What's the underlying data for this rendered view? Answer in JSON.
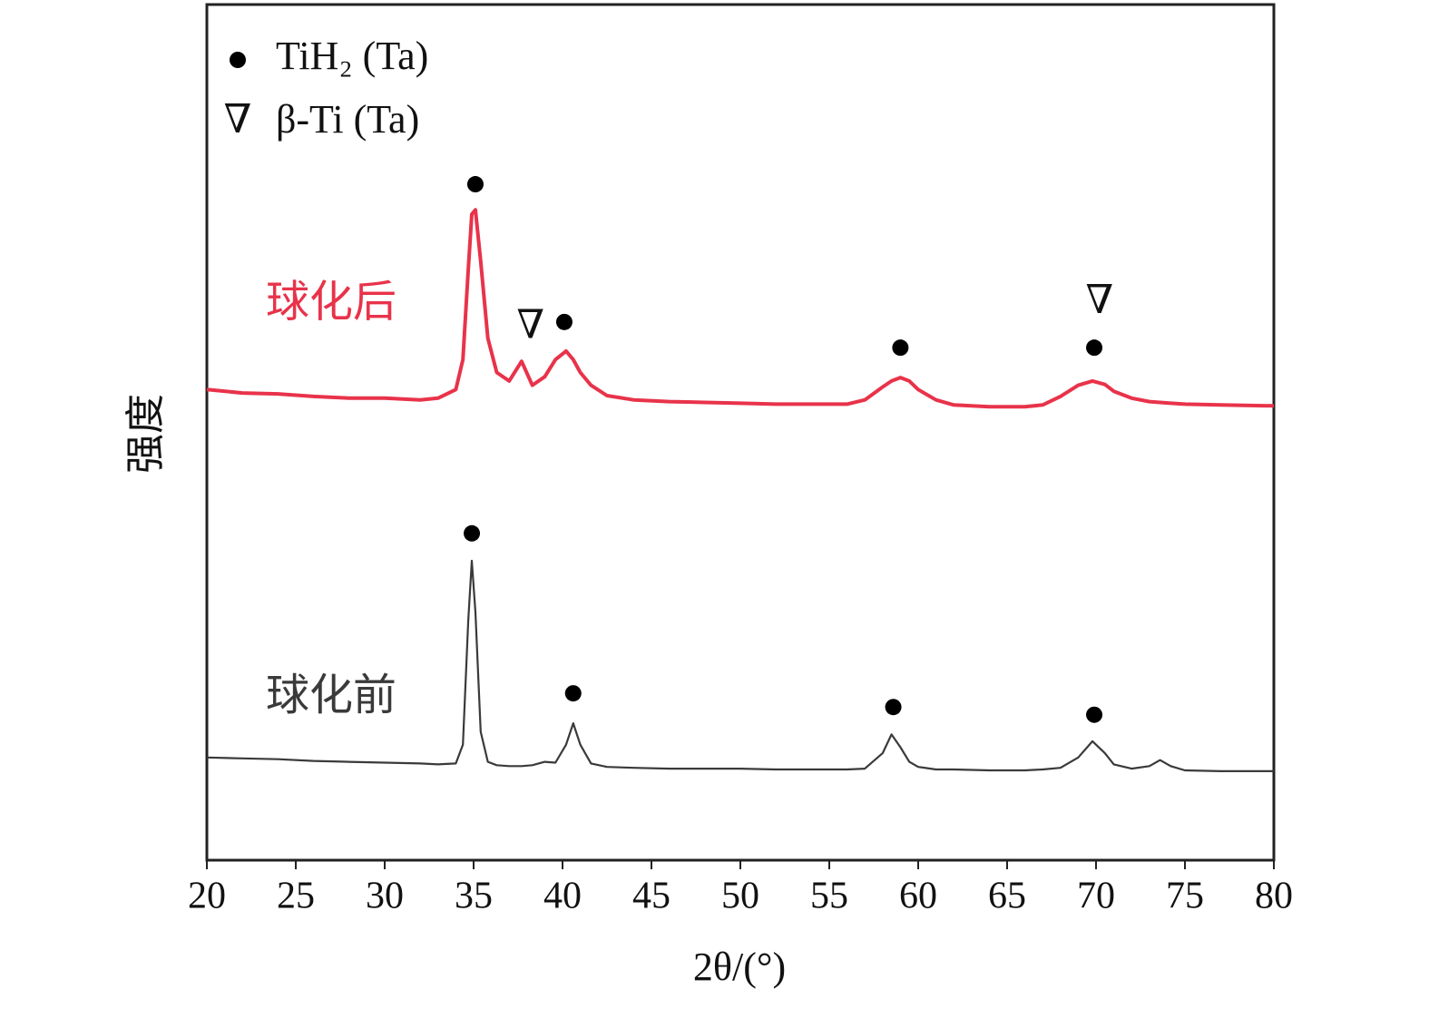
{
  "chart_data": {
    "type": "line",
    "x_label": "2θ/(°)",
    "y_label": "强度",
    "xlim": [
      20,
      80
    ],
    "xticks": [
      20,
      25,
      30,
      35,
      40,
      45,
      50,
      55,
      60,
      65,
      70,
      75,
      80
    ],
    "ylim": [
      0,
      100
    ],
    "legend": [
      {
        "symbol": "●",
        "label": "TiH₂ (Ta)"
      },
      {
        "symbol": "∇",
        "label": "β-Ti (Ta)"
      }
    ],
    "series": [
      {
        "name": "球化后",
        "color": "#e8334a",
        "x": [
          20,
          22,
          24,
          26,
          28,
          30,
          32,
          33,
          34,
          34.4,
          34.7,
          34.9,
          35.1,
          35.4,
          35.8,
          36.3,
          37,
          37.7,
          38.3,
          39,
          39.6,
          40.2,
          40.6,
          41,
          41.6,
          42.5,
          44,
          46,
          48,
          50,
          52,
          54,
          56,
          57,
          58,
          58.5,
          59,
          59.5,
          60,
          61,
          62,
          64,
          66,
          67,
          68,
          69,
          69.8,
          70.5,
          71,
          72,
          73,
          73.6,
          74.2,
          75,
          77,
          80
        ],
        "values": [
          55.0,
          54.6,
          54.5,
          54.2,
          54.0,
          54.0,
          53.8,
          54.0,
          55.0,
          58.5,
          69.0,
          75.5,
          76.0,
          70.0,
          61.0,
          57.0,
          56.0,
          58.3,
          55.5,
          56.5,
          58.5,
          59.5,
          58.5,
          57.0,
          55.5,
          54.3,
          53.8,
          53.6,
          53.5,
          53.4,
          53.3,
          53.3,
          53.3,
          53.8,
          55.3,
          56.0,
          56.4,
          56.0,
          55.0,
          53.8,
          53.2,
          53.0,
          53.0,
          53.2,
          54.2,
          55.5,
          56.0,
          55.6,
          54.8,
          54.0,
          53.6,
          53.5,
          53.4,
          53.3,
          53.2,
          53.1
        ],
        "markers": [
          {
            "x": 35.1,
            "y": 79.0,
            "symbol": "●"
          },
          {
            "x": 38.2,
            "y": 62.1,
            "symbol": "∇"
          },
          {
            "x": 40.1,
            "y": 62.9,
            "symbol": "●"
          },
          {
            "x": 59.0,
            "y": 59.9,
            "symbol": "●"
          },
          {
            "x": 70.2,
            "y": 65.0,
            "symbol": "∇"
          },
          {
            "x": 69.9,
            "y": 59.9,
            "symbol": "●"
          }
        ]
      },
      {
        "name": "球化前",
        "color": "#3a3a3a",
        "x": [
          20,
          22,
          24,
          26,
          28,
          30,
          32,
          33,
          34,
          34.4,
          34.7,
          34.9,
          35.1,
          35.4,
          35.8,
          36.3,
          37,
          37.7,
          38.3,
          39,
          39.6,
          40.2,
          40.6,
          41,
          41.6,
          42.5,
          44,
          46,
          48,
          50,
          52,
          54,
          56,
          57,
          58,
          58.5,
          59,
          59.5,
          60,
          61,
          62,
          64,
          66,
          67,
          68,
          69,
          69.8,
          70.5,
          71,
          72,
          73,
          73.6,
          74.2,
          75,
          77,
          80
        ],
        "values": [
          12.0,
          11.9,
          11.8,
          11.6,
          11.5,
          11.4,
          11.3,
          11.2,
          11.3,
          13.5,
          28.0,
          35.0,
          29.0,
          15.0,
          11.5,
          11.1,
          11.0,
          11.0,
          11.1,
          11.5,
          11.4,
          13.5,
          16.0,
          13.5,
          11.3,
          10.9,
          10.8,
          10.7,
          10.7,
          10.7,
          10.6,
          10.6,
          10.6,
          10.7,
          12.5,
          14.7,
          13.2,
          11.5,
          10.9,
          10.6,
          10.6,
          10.5,
          10.5,
          10.6,
          10.8,
          12.0,
          13.9,
          12.5,
          11.2,
          10.7,
          11.0,
          11.7,
          11.0,
          10.5,
          10.4,
          10.4
        ],
        "markers": [
          {
            "x": 34.9,
            "y": 38.2,
            "symbol": "●"
          },
          {
            "x": 40.6,
            "y": 19.5,
            "symbol": "●"
          },
          {
            "x": 58.6,
            "y": 17.9,
            "symbol": "●"
          },
          {
            "x": 69.9,
            "y": 17.0,
            "symbol": "●"
          }
        ]
      }
    ]
  }
}
